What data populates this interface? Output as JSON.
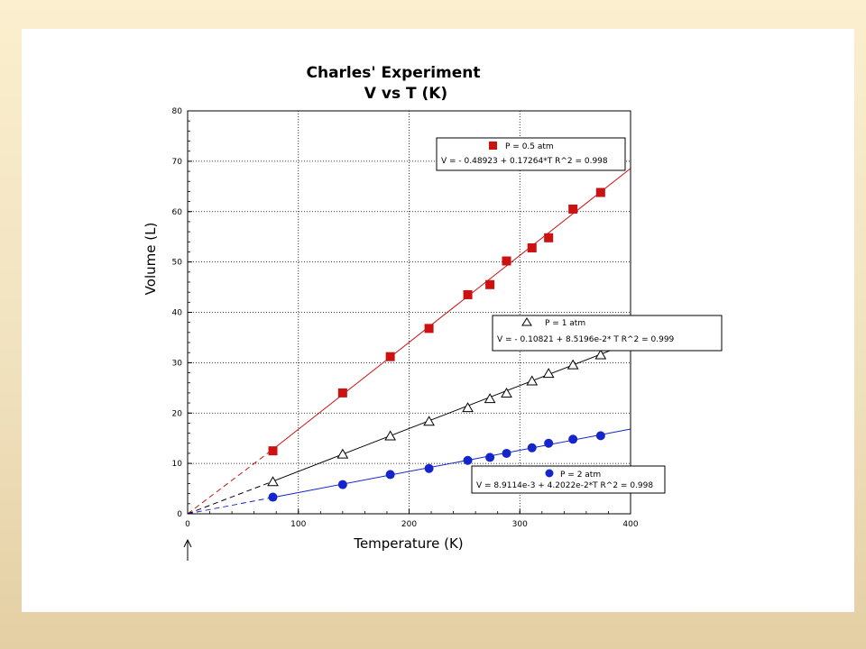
{
  "chart_data": {
    "type": "scatter",
    "title": "Charles' Experiment",
    "subtitle": "V vs T (K)",
    "xlabel": "Temperature (K)",
    "ylabel": "Volume (L)",
    "xlim": [
      0,
      400
    ],
    "ylim": [
      0,
      80
    ],
    "xticks": [
      "0",
      "100",
      "200",
      "300",
      "400"
    ],
    "yticks": [
      "0",
      "10",
      "20",
      "30",
      "40",
      "50",
      "60",
      "70",
      "80"
    ],
    "grid": true,
    "series": [
      {
        "name": "P = 0.5 atm",
        "fit": "V =  - 0.48923 + 0.17264*T   R^2 = 0.998",
        "intercept": -0.48923,
        "slope": 0.17264,
        "marker": "square",
        "color": "#cc1111",
        "x": [
          77,
          140,
          183,
          218,
          253,
          273,
          288,
          311,
          326,
          348,
          373
        ],
        "y": [
          12.5,
          24,
          31.2,
          36.8,
          43.5,
          45.5,
          50.2,
          52.8,
          54.8,
          60.5,
          63.8
        ]
      },
      {
        "name": "P = 1 atm",
        "fit": "V =  - 0.10821 + 8.5196e-2* T   R^2 = 0.999",
        "intercept": -0.10821,
        "slope": 0.085196,
        "marker": "triangle",
        "color": "#000000",
        "x": [
          77,
          140,
          183,
          218,
          253,
          273,
          288,
          311,
          326,
          348,
          373
        ],
        "y": [
          6.3,
          11.8,
          15.4,
          18.3,
          21,
          22.8,
          23.9,
          26.3,
          27.8,
          29.5,
          31.5
        ]
      },
      {
        "name": "P = 2 atm",
        "fit": "V = 8.9114e-3 + 4.2022e-2*T   R^2 = 0.998",
        "intercept": 0.0089114,
        "slope": 0.042022,
        "marker": "circle",
        "color": "#1525cc",
        "x": [
          77,
          140,
          183,
          218,
          253,
          273,
          288,
          311,
          326,
          348,
          373
        ],
        "y": [
          3.3,
          5.8,
          7.8,
          9,
          10.6,
          11.2,
          12,
          13.1,
          14,
          14.8,
          15.5
        ]
      }
    ]
  }
}
